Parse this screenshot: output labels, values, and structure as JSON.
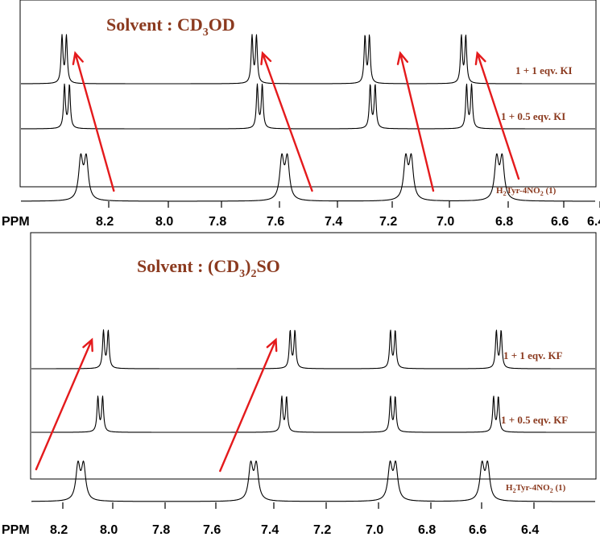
{
  "chart_data": [
    {
      "type": "line",
      "title_main": "Solvent : CD",
      "title_sub": "3",
      "title_tail": "OD",
      "xlabel": "PPM",
      "xlim": [
        8.3,
        6.25
      ],
      "ticks": [
        "8.2",
        "8.0",
        "7.8",
        "7.6",
        "7.4",
        "7.2",
        "7.0",
        "6.8",
        "6.6",
        "6.4"
      ],
      "tick_values": [
        8.2,
        8.0,
        7.8,
        7.6,
        7.4,
        7.2,
        7.0,
        6.8,
        6.6,
        6.4
      ],
      "series": [
        {
          "name": "1 + 1 eqv. KI",
          "peaks": [
            8.14,
            7.45,
            7.04,
            6.69
          ],
          "split": 0.016,
          "width": 0.004
        },
        {
          "name": "1 + 0.5 eqv. KI",
          "peaks": [
            8.13,
            7.43,
            7.02,
            6.67
          ],
          "split": 0.018,
          "width": 0.004
        },
        {
          "main": "H",
          "sub": "2",
          "tail": "Tyr-4NO",
          "sub2": "2",
          "end": " (1)",
          "peaks": [
            8.07,
            7.34,
            6.89,
            6.56
          ],
          "split": 0.02,
          "width": 0.009
        }
      ],
      "arrows": [
        {
          "from": 7.96,
          "to": 8.1
        },
        {
          "from": 7.24,
          "to": 7.42
        },
        {
          "from": 6.8,
          "to": 6.92
        },
        {
          "from": 6.49,
          "to": 6.64
        }
      ]
    },
    {
      "type": "line",
      "title_main": "Solvent : (CD",
      "title_sub": "3",
      "title_tail": ")",
      "title_sub2": "2",
      "title_end": "SO",
      "xlabel": "PPM",
      "xlim": [
        8.3,
        6.25
      ],
      "ticks": [
        "8.2",
        "8.0",
        "7.8",
        "7.6",
        "7.4",
        "7.2",
        "7.0",
        "6.8",
        "6.6",
        "6.4"
      ],
      "tick_values": [
        8.2,
        8.0,
        7.8,
        7.6,
        7.4,
        7.2,
        7.0,
        6.8,
        6.6,
        6.4
      ],
      "series": [
        {
          "name": "1 + 1 eqv. KF",
          "peaks": [
            8.03,
            7.36,
            7.0,
            6.62
          ],
          "split": 0.017,
          "width": 0.004
        },
        {
          "name": "1 + 0.5 eqv. KF",
          "peaks": [
            8.05,
            7.39,
            7.0,
            6.63
          ],
          "split": 0.017,
          "width": 0.004
        },
        {
          "main": "H",
          "sub": "2",
          "tail": "Tyr-4NO",
          "sub2": "2",
          "end": " (1)",
          "peaks": [
            8.12,
            7.5,
            7.0,
            6.67
          ],
          "split": 0.02,
          "width": 0.009
        }
      ],
      "arrows": [
        {
          "from": 8.28,
          "to": 8.08
        },
        {
          "from": 7.62,
          "to": 7.42
        }
      ]
    }
  ]
}
